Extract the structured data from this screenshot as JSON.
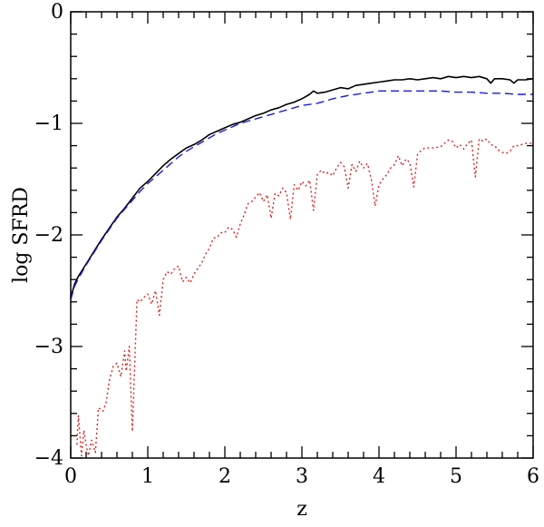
{
  "chart_data": {
    "type": "line",
    "title": "",
    "xlabel": "z",
    "ylabel": "log  SFRD",
    "xlim": [
      0,
      6
    ],
    "ylim": [
      -4,
      0
    ],
    "grid": false,
    "legend": "none",
    "x_ticks": [
      {
        "value": 0,
        "label": "0"
      },
      {
        "value": 1,
        "label": "1"
      },
      {
        "value": 2,
        "label": "2"
      },
      {
        "value": 3,
        "label": "3"
      },
      {
        "value": 4,
        "label": "4"
      },
      {
        "value": 5,
        "label": "5"
      },
      {
        "value": 6,
        "label": "6"
      }
    ],
    "y_ticks": [
      {
        "value": 0,
        "label": "0"
      },
      {
        "value": -1,
        "label": "−1"
      },
      {
        "value": -2,
        "label": "−2"
      },
      {
        "value": -3,
        "label": "−3"
      },
      {
        "value": -4,
        "label": "−4"
      }
    ],
    "series": [
      {
        "style": "solid",
        "color": "#000000",
        "points": [
          [
            0,
            -2.56
          ],
          [
            0.05,
            -2.44
          ],
          [
            0.1,
            -2.37
          ],
          [
            0.2,
            -2.26
          ],
          [
            0.3,
            -2.15
          ],
          [
            0.4,
            -2.04
          ],
          [
            0.5,
            -1.94
          ],
          [
            0.6,
            -1.84
          ],
          [
            0.7,
            -1.76
          ],
          [
            0.8,
            -1.67
          ],
          [
            0.9,
            -1.58
          ],
          [
            1.0,
            -1.52
          ],
          [
            1.1,
            -1.45
          ],
          [
            1.2,
            -1.38
          ],
          [
            1.3,
            -1.32
          ],
          [
            1.4,
            -1.27
          ],
          [
            1.5,
            -1.22
          ],
          [
            1.6,
            -1.19
          ],
          [
            1.7,
            -1.15
          ],
          [
            1.8,
            -1.1
          ],
          [
            1.9,
            -1.07
          ],
          [
            2.0,
            -1.04
          ],
          [
            2.1,
            -1.01
          ],
          [
            2.2,
            -0.99
          ],
          [
            2.3,
            -0.96
          ],
          [
            2.4,
            -0.93
          ],
          [
            2.5,
            -0.91
          ],
          [
            2.6,
            -0.88
          ],
          [
            2.7,
            -0.86
          ],
          [
            2.8,
            -0.83
          ],
          [
            2.9,
            -0.81
          ],
          [
            3.0,
            -0.78
          ],
          [
            3.1,
            -0.74
          ],
          [
            3.15,
            -0.71
          ],
          [
            3.2,
            -0.73
          ],
          [
            3.3,
            -0.72
          ],
          [
            3.4,
            -0.7
          ],
          [
            3.5,
            -0.68
          ],
          [
            3.6,
            -0.69
          ],
          [
            3.7,
            -0.66
          ],
          [
            3.8,
            -0.65
          ],
          [
            3.9,
            -0.64
          ],
          [
            4.0,
            -0.63
          ],
          [
            4.1,
            -0.62
          ],
          [
            4.2,
            -0.61
          ],
          [
            4.3,
            -0.61
          ],
          [
            4.4,
            -0.6
          ],
          [
            4.5,
            -0.61
          ],
          [
            4.6,
            -0.6
          ],
          [
            4.7,
            -0.59
          ],
          [
            4.8,
            -0.6
          ],
          [
            4.9,
            -0.58
          ],
          [
            5.0,
            -0.59
          ],
          [
            5.1,
            -0.58
          ],
          [
            5.2,
            -0.59
          ],
          [
            5.3,
            -0.58
          ],
          [
            5.4,
            -0.6
          ],
          [
            5.45,
            -0.64
          ],
          [
            5.5,
            -0.6
          ],
          [
            5.6,
            -0.6
          ],
          [
            5.7,
            -0.61
          ],
          [
            5.75,
            -0.64
          ],
          [
            5.8,
            -0.61
          ],
          [
            5.9,
            -0.61
          ],
          [
            6.0,
            -0.6
          ]
        ]
      },
      {
        "style": "dashed",
        "color": "#1a1ae6",
        "points": [
          [
            0,
            -2.58
          ],
          [
            0.05,
            -2.46
          ],
          [
            0.1,
            -2.39
          ],
          [
            0.2,
            -2.27
          ],
          [
            0.3,
            -2.16
          ],
          [
            0.4,
            -2.05
          ],
          [
            0.5,
            -1.95
          ],
          [
            0.6,
            -1.85
          ],
          [
            0.7,
            -1.77
          ],
          [
            0.8,
            -1.69
          ],
          [
            0.9,
            -1.61
          ],
          [
            1.0,
            -1.54
          ],
          [
            1.1,
            -1.48
          ],
          [
            1.2,
            -1.42
          ],
          [
            1.3,
            -1.36
          ],
          [
            1.4,
            -1.3
          ],
          [
            1.5,
            -1.25
          ],
          [
            1.6,
            -1.21
          ],
          [
            1.7,
            -1.17
          ],
          [
            1.8,
            -1.13
          ],
          [
            1.9,
            -1.09
          ],
          [
            2.0,
            -1.06
          ],
          [
            2.1,
            -1.03
          ],
          [
            2.2,
            -1.0
          ],
          [
            2.3,
            -0.98
          ],
          [
            2.4,
            -0.96
          ],
          [
            2.5,
            -0.94
          ],
          [
            2.6,
            -0.92
          ],
          [
            2.7,
            -0.9
          ],
          [
            2.8,
            -0.88
          ],
          [
            2.9,
            -0.86
          ],
          [
            3.0,
            -0.84
          ],
          [
            3.2,
            -0.82
          ],
          [
            3.4,
            -0.78
          ],
          [
            3.6,
            -0.75
          ],
          [
            3.8,
            -0.73
          ],
          [
            4.0,
            -0.71
          ],
          [
            4.2,
            -0.71
          ],
          [
            4.4,
            -0.71
          ],
          [
            4.6,
            -0.71
          ],
          [
            4.8,
            -0.71
          ],
          [
            5.0,
            -0.72
          ],
          [
            5.2,
            -0.72
          ],
          [
            5.4,
            -0.73
          ],
          [
            5.6,
            -0.73
          ],
          [
            5.8,
            -0.74
          ],
          [
            6.0,
            -0.74
          ]
        ]
      },
      {
        "style": "dotted",
        "color": "#e02020",
        "points": [
          [
            0.08,
            -3.88
          ],
          [
            0.1,
            -3.62
          ],
          [
            0.14,
            -3.98
          ],
          [
            0.17,
            -3.75
          ],
          [
            0.2,
            -3.88
          ],
          [
            0.23,
            -3.98
          ],
          [
            0.27,
            -3.84
          ],
          [
            0.32,
            -3.95
          ],
          [
            0.36,
            -3.55
          ],
          [
            0.42,
            -3.58
          ],
          [
            0.46,
            -3.5
          ],
          [
            0.5,
            -3.31
          ],
          [
            0.55,
            -3.18
          ],
          [
            0.6,
            -3.15
          ],
          [
            0.65,
            -3.27
          ],
          [
            0.7,
            -3.04
          ],
          [
            0.72,
            -3.22
          ],
          [
            0.76,
            -3.0
          ],
          [
            0.8,
            -3.76
          ],
          [
            0.86,
            -2.58
          ],
          [
            0.9,
            -2.6
          ],
          [
            0.95,
            -2.56
          ],
          [
            1.0,
            -2.53
          ],
          [
            1.05,
            -2.62
          ],
          [
            1.1,
            -2.5
          ],
          [
            1.15,
            -2.72
          ],
          [
            1.2,
            -2.4
          ],
          [
            1.25,
            -2.33
          ],
          [
            1.3,
            -2.35
          ],
          [
            1.35,
            -2.3
          ],
          [
            1.4,
            -2.28
          ],
          [
            1.45,
            -2.42
          ],
          [
            1.5,
            -2.38
          ],
          [
            1.55,
            -2.43
          ],
          [
            1.6,
            -2.35
          ],
          [
            1.65,
            -2.3
          ],
          [
            1.7,
            -2.25
          ],
          [
            1.75,
            -2.17
          ],
          [
            1.8,
            -2.12
          ],
          [
            1.85,
            -2.03
          ],
          [
            1.9,
            -2.02
          ],
          [
            1.95,
            -1.98
          ],
          [
            2.0,
            -1.98
          ],
          [
            2.05,
            -1.93
          ],
          [
            2.1,
            -1.95
          ],
          [
            2.15,
            -2.02
          ],
          [
            2.2,
            -1.9
          ],
          [
            2.25,
            -1.82
          ],
          [
            2.3,
            -1.72
          ],
          [
            2.35,
            -1.7
          ],
          [
            2.4,
            -1.66
          ],
          [
            2.45,
            -1.62
          ],
          [
            2.5,
            -1.7
          ],
          [
            2.55,
            -1.64
          ],
          [
            2.6,
            -1.85
          ],
          [
            2.65,
            -1.63
          ],
          [
            2.7,
            -1.65
          ],
          [
            2.75,
            -1.58
          ],
          [
            2.8,
            -1.62
          ],
          [
            2.85,
            -1.86
          ],
          [
            2.9,
            -1.55
          ],
          [
            2.95,
            -1.6
          ],
          [
            3.0,
            -1.52
          ],
          [
            3.05,
            -1.56
          ],
          [
            3.1,
            -1.51
          ],
          [
            3.15,
            -1.78
          ],
          [
            3.2,
            -1.46
          ],
          [
            3.25,
            -1.42
          ],
          [
            3.3,
            -1.45
          ],
          [
            3.35,
            -1.44
          ],
          [
            3.4,
            -1.47
          ],
          [
            3.45,
            -1.4
          ],
          [
            3.5,
            -1.35
          ],
          [
            3.55,
            -1.39
          ],
          [
            3.6,
            -1.58
          ],
          [
            3.65,
            -1.37
          ],
          [
            3.7,
            -1.43
          ],
          [
            3.75,
            -1.34
          ],
          [
            3.8,
            -1.4
          ],
          [
            3.85,
            -1.36
          ],
          [
            3.9,
            -1.5
          ],
          [
            3.95,
            -1.74
          ],
          [
            4.0,
            -1.55
          ],
          [
            4.05,
            -1.5
          ],
          [
            4.1,
            -1.46
          ],
          [
            4.15,
            -1.4
          ],
          [
            4.2,
            -1.37
          ],
          [
            4.25,
            -1.29
          ],
          [
            4.3,
            -1.38
          ],
          [
            4.35,
            -1.32
          ],
          [
            4.4,
            -1.35
          ],
          [
            4.45,
            -1.57
          ],
          [
            4.5,
            -1.28
          ],
          [
            4.55,
            -1.24
          ],
          [
            4.6,
            -1.22
          ],
          [
            4.7,
            -1.22
          ],
          [
            4.8,
            -1.21
          ],
          [
            4.9,
            -1.15
          ],
          [
            4.95,
            -1.16
          ],
          [
            5.0,
            -1.22
          ],
          [
            5.05,
            -1.19
          ],
          [
            5.1,
            -1.23
          ],
          [
            5.15,
            -1.18
          ],
          [
            5.2,
            -1.15
          ],
          [
            5.25,
            -1.48
          ],
          [
            5.3,
            -1.14
          ],
          [
            5.35,
            -1.16
          ],
          [
            5.4,
            -1.14
          ],
          [
            5.45,
            -1.19
          ],
          [
            5.5,
            -1.2
          ],
          [
            5.55,
            -1.24
          ],
          [
            5.6,
            -1.26
          ],
          [
            5.65,
            -1.27
          ],
          [
            5.7,
            -1.25
          ],
          [
            5.75,
            -1.2
          ],
          [
            5.8,
            -1.2
          ],
          [
            5.85,
            -1.19
          ],
          [
            5.9,
            -1.18
          ],
          [
            6.0,
            -1.18
          ]
        ]
      }
    ]
  }
}
